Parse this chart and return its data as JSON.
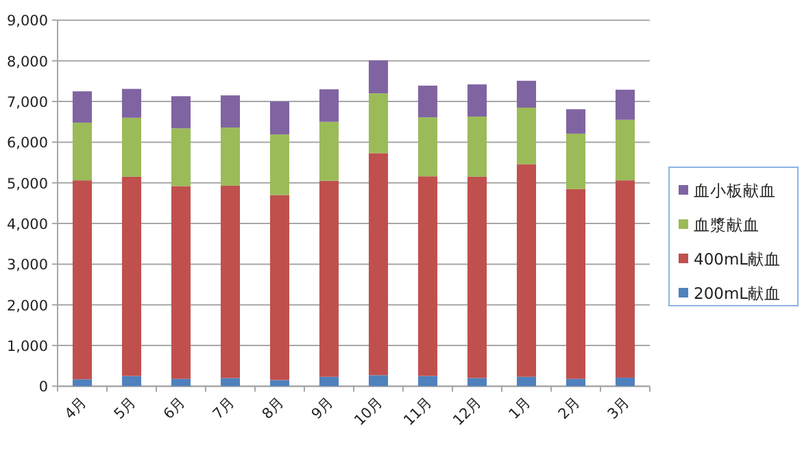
{
  "chart_data": {
    "type": "bar",
    "stacked": true,
    "categories": [
      "4月",
      "5月",
      "6月",
      "7月",
      "8月",
      "9月",
      "10月",
      "11月",
      "12月",
      "1月",
      "2月",
      "3月"
    ],
    "series": [
      {
        "name": "200mL献血",
        "color": "#4f81bd",
        "values": [
          170,
          250,
          180,
          200,
          150,
          230,
          270,
          250,
          200,
          230,
          180,
          210
        ]
      },
      {
        "name": "400mL献血",
        "color": "#c0504d",
        "values": [
          4890,
          4900,
          4740,
          4730,
          4550,
          4820,
          5460,
          4910,
          4950,
          5230,
          4670,
          4850
        ]
      },
      {
        "name": "血漿献血",
        "color": "#9bbb59",
        "values": [
          1420,
          1450,
          1420,
          1430,
          1490,
          1450,
          1470,
          1450,
          1480,
          1390,
          1360,
          1490
        ]
      },
      {
        "name": "血小板献血",
        "color": "#8064a2",
        "values": [
          770,
          710,
          790,
          790,
          810,
          800,
          810,
          780,
          790,
          660,
          600,
          740
        ]
      }
    ],
    "ylim": [
      0,
      9000
    ],
    "yticks": [
      {
        "value": 0,
        "label": "0"
      },
      {
        "value": 1000,
        "label": "1,000"
      },
      {
        "value": 2000,
        "label": "2,000"
      },
      {
        "value": 3000,
        "label": "3,000"
      },
      {
        "value": 4000,
        "label": "4,000"
      },
      {
        "value": 5000,
        "label": "5,000"
      },
      {
        "value": 6000,
        "label": "6,000"
      },
      {
        "value": 7000,
        "label": "7,000"
      },
      {
        "value": 8000,
        "label": "8,000"
      },
      {
        "value": 9000,
        "label": "9,000"
      }
    ],
    "grid": "y",
    "legend": "right"
  }
}
